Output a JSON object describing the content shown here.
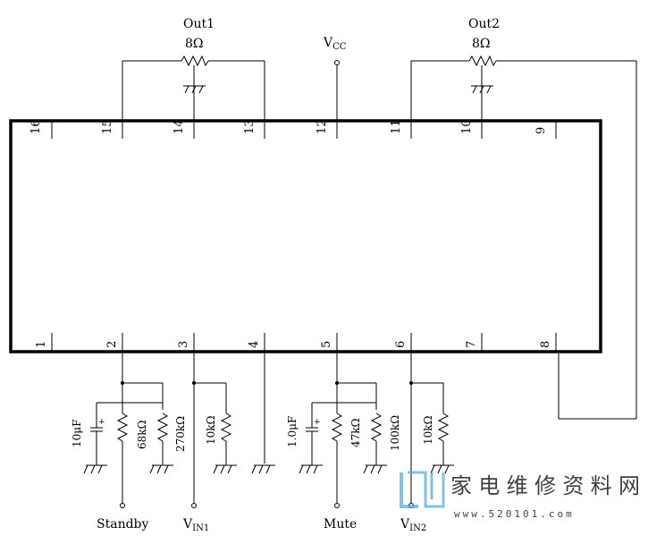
{
  "top": {
    "out1": "Out1",
    "out1_res": "8Ω",
    "vcc_main": "V",
    "vcc_sub": "CC",
    "out2": "Out2",
    "out2_res": "8Ω"
  },
  "pins_top": [
    "16",
    "15",
    "14",
    "13",
    "12",
    "11",
    "10",
    "9"
  ],
  "pins_bottom": [
    "1",
    "2",
    "3",
    "4",
    "5",
    "6",
    "7",
    "8"
  ],
  "components": {
    "c_standby": "10μF",
    "r_68k": "68kΩ",
    "r_270k": "270kΩ",
    "r_vin1": "10kΩ",
    "c_mute": "1.0μF",
    "r_47k": "47kΩ",
    "r_100k": "100kΩ",
    "r_vin2": "10kΩ",
    "plus1": "+",
    "plus2": "+"
  },
  "bottom": {
    "standby": "Standby",
    "vin1_main": "V",
    "vin1_sub": "IN1",
    "mute": "Mute",
    "vin2_main": "V",
    "vin2_sub": "IN2"
  },
  "watermark": {
    "cn": "家电维修资料网",
    "url": "www.520101.com"
  },
  "colors": {
    "line": "#000000",
    "watermark": "#5aaedc"
  }
}
